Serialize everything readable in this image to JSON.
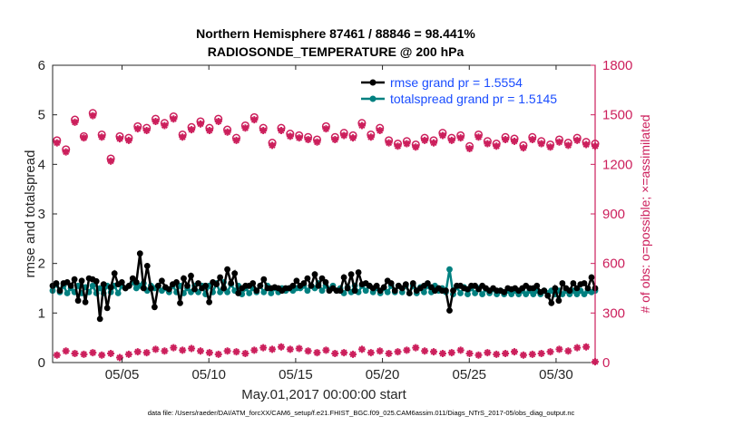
{
  "chart_data": {
    "type": "line",
    "title_line1": "Northern Hemisphere 87461 / 88846 = 98.441%",
    "title_line2": "RADIOSONDE_TEMPERATURE @ 200 hPa",
    "xlabel": "May.01,2017 00:00:00 start",
    "ylabel_left": "rmse and totalspread",
    "ylabel_right": "# of obs: o=possible; ×=assimilated",
    "footnote": "data file: /Users/raeder/DAI/ATM_forcXX/CAM6_setup/f.e21.FHIST_BGC.f09_025.CAM6assim.011/Diags_NTrS_2017-05/obs_diag_output.nc",
    "xlim": [
      1.0,
      32.25
    ],
    "ylim_left": [
      0,
      6
    ],
    "ylim_right": [
      0,
      1800
    ],
    "left_ticks": [
      "0",
      "1",
      "2",
      "3",
      "4",
      "5",
      "6"
    ],
    "right_ticks": [
      "0",
      "300",
      "600",
      "900",
      "1200",
      "1500",
      "1800"
    ],
    "x_ticks": [
      {
        "pos": 5,
        "label": "05/05"
      },
      {
        "pos": 10,
        "label": "05/10"
      },
      {
        "pos": 15,
        "label": "05/15"
      },
      {
        "pos": 20,
        "label": "05/20"
      },
      {
        "pos": 25,
        "label": "05/25"
      },
      {
        "pos": 30,
        "label": "05/30"
      }
    ],
    "legend": [
      {
        "name": "rmse grand pr = 1.5554",
        "color": "#000000"
      },
      {
        "name": "totalspread grand pr = 1.5145",
        "color": "#008080"
      }
    ],
    "colors": {
      "rmse": "#000000",
      "spread": "#008080",
      "obs": "#cc1f5c",
      "legend_text": "#1a4dff",
      "right_axis": "#cc1f5c"
    },
    "series": [
      {
        "name": "rmse",
        "axis": "left",
        "values": [
          1.55,
          1.6,
          1.45,
          1.6,
          1.62,
          1.55,
          1.68,
          1.25,
          1.65,
          1.22,
          1.7,
          1.68,
          1.64,
          0.88,
          1.58,
          1.1,
          1.52,
          1.8,
          1.58,
          1.62,
          1.5,
          1.55,
          1.7,
          1.62,
          2.2,
          1.5,
          1.95,
          1.5,
          1.12,
          1.55,
          1.65,
          1.52,
          1.48,
          1.58,
          1.62,
          1.2,
          1.7,
          1.55,
          1.75,
          1.48,
          1.6,
          1.5,
          1.55,
          1.22,
          1.62,
          1.58,
          1.72,
          1.5,
          1.88,
          1.6,
          1.8,
          1.4,
          1.5,
          1.55,
          1.55,
          1.6,
          1.45,
          1.55,
          1.68,
          1.5,
          1.5,
          1.52,
          1.5,
          1.45,
          1.5,
          1.5,
          1.55,
          1.65,
          1.55,
          1.6,
          1.7,
          1.55,
          1.78,
          1.55,
          1.7,
          1.62,
          1.45,
          1.5,
          1.45,
          1.45,
          1.72,
          1.5,
          1.78,
          1.45,
          1.82,
          1.58,
          1.6,
          1.55,
          1.5,
          1.55,
          1.45,
          1.52,
          1.65,
          1.6,
          1.45,
          1.55,
          1.5,
          1.58,
          1.4,
          1.6,
          1.45,
          1.5,
          1.55,
          1.6,
          1.52,
          1.45,
          1.5,
          1.45,
          1.45,
          1.05,
          1.45,
          1.55,
          1.55,
          1.5,
          1.48,
          1.55,
          1.55,
          1.48,
          1.55,
          1.5,
          1.45,
          1.5,
          1.45,
          1.45,
          1.42,
          1.5,
          1.48,
          1.5,
          1.45,
          1.5,
          1.55,
          1.5,
          1.5,
          1.55,
          1.42,
          1.45,
          1.35,
          1.2,
          1.5,
          1.25,
          1.6,
          1.5,
          1.45,
          1.6,
          1.5,
          1.58,
          1.6,
          1.5,
          1.72,
          1.5
        ]
      },
      {
        "name": "totalspread",
        "axis": "left",
        "values": [
          1.45,
          1.58,
          1.42,
          1.55,
          1.4,
          1.5,
          1.42,
          1.55,
          1.4,
          1.52,
          1.42,
          1.55,
          1.4,
          1.5,
          1.4,
          1.55,
          1.42,
          1.55,
          1.4,
          1.55,
          1.5,
          1.55,
          1.62,
          1.5,
          1.55,
          1.6,
          1.45,
          1.55,
          1.5,
          1.55,
          1.45,
          1.5,
          1.42,
          1.55,
          1.42,
          1.55,
          1.4,
          1.5,
          1.42,
          1.55,
          1.42,
          1.55,
          1.38,
          1.55,
          1.42,
          1.6,
          1.42,
          1.62,
          1.42,
          1.58,
          1.45,
          1.55,
          1.38,
          1.5,
          1.4,
          1.5,
          1.42,
          1.55,
          1.42,
          1.55,
          1.4,
          1.5,
          1.42,
          1.5,
          1.45,
          1.5,
          1.45,
          1.5,
          1.5,
          1.55,
          1.45,
          1.55,
          1.5,
          1.6,
          1.45,
          1.55,
          1.48,
          1.55,
          1.45,
          1.5,
          1.4,
          1.52,
          1.42,
          1.55,
          1.42,
          1.55,
          1.45,
          1.55,
          1.42,
          1.5,
          1.4,
          1.5,
          1.42,
          1.55,
          1.42,
          1.55,
          1.42,
          1.55,
          1.4,
          1.55,
          1.4,
          1.52,
          1.42,
          1.55,
          1.42,
          1.55,
          1.45,
          1.5,
          1.42,
          1.88,
          1.38,
          1.52,
          1.4,
          1.52,
          1.38,
          1.5,
          1.4,
          1.5,
          1.38,
          1.48,
          1.4,
          1.48,
          1.38,
          1.45,
          1.38,
          1.45,
          1.38,
          1.45,
          1.38,
          1.45,
          1.38,
          1.45,
          1.38,
          1.45,
          1.38,
          1.45,
          1.4,
          1.45,
          1.38,
          1.45,
          1.38,
          1.45,
          1.38,
          1.45,
          1.38,
          1.45,
          1.38,
          1.45,
          1.42,
          1.45
        ]
      },
      {
        "name": "possible",
        "axis": "right",
        "values": [
          1345,
          1290,
          1470,
          1370,
          1510,
          1380,
          1235,
          1370,
          1360,
          1430,
          1420,
          1475,
          1450,
          1490,
          1380,
          1425,
          1460,
          1420,
          1475,
          1410,
          1360,
          1435,
          1485,
          1420,
          1330,
          1420,
          1385,
          1375,
          1365,
          1350,
          1430,
          1365,
          1390,
          1375,
          1450,
          1380,
          1420,
          1345,
          1325,
          1340,
          1320,
          1360,
          1345,
          1390,
          1360,
          1375,
          1310,
          1380,
          1340,
          1325,
          1365,
          1355,
          1315,
          1365,
          1340,
          1320,
          1350,
          1330,
          1360,
          1335,
          1325
        ]
      },
      {
        "name": "assimilated",
        "axis": "right",
        "values": [
          1330,
          1275,
          1455,
          1360,
          1495,
          1365,
          1220,
          1355,
          1345,
          1415,
          1405,
          1460,
          1435,
          1475,
          1365,
          1410,
          1445,
          1405,
          1460,
          1395,
          1345,
          1420,
          1470,
          1405,
          1315,
          1405,
          1370,
          1360,
          1350,
          1335,
          1415,
          1350,
          1375,
          1360,
          1435,
          1365,
          1405,
          1330,
          1310,
          1325,
          1305,
          1345,
          1330,
          1375,
          1345,
          1360,
          1295,
          1365,
          1325,
          1310,
          1350,
          1340,
          1300,
          1350,
          1325,
          1305,
          1335,
          1315,
          1345,
          1320,
          1310
        ]
      },
      {
        "name": "rejected",
        "axis": "right",
        "values": [
          45,
          70,
          55,
          50,
          60,
          45,
          55,
          30,
          50,
          65,
          60,
          80,
          70,
          90,
          75,
          85,
          70,
          60,
          50,
          70,
          65,
          55,
          75,
          90,
          80,
          95,
          80,
          85,
          70,
          60,
          75,
          55,
          60,
          50,
          80,
          60,
          70,
          55,
          65,
          75,
          90,
          70,
          65,
          55,
          60,
          75,
          55,
          45,
          60,
          50,
          55,
          65,
          45,
          50,
          55,
          65,
          80,
          70,
          90,
          95,
          5
        ]
      }
    ]
  }
}
